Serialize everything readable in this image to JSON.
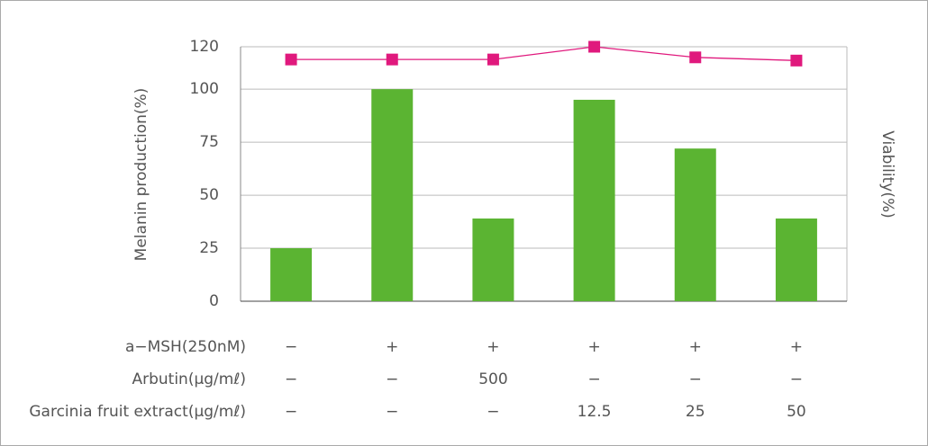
{
  "chart_data": {
    "type": "bar",
    "y_label": "Melanin production(%)",
    "y2_label": "Viability(%)",
    "ylim": [
      0,
      120
    ],
    "yticks": [
      0,
      25,
      50,
      75,
      100,
      120
    ],
    "grid": true,
    "categories": [
      null,
      null,
      null,
      null,
      null,
      null
    ],
    "series": [
      {
        "name": "Melanin production",
        "color": "#5bb432",
        "type": "bar",
        "values": [
          25,
          100,
          39,
          95,
          72,
          39
        ]
      },
      {
        "name": "Viability",
        "color": "#e0197d",
        "type": "line",
        "values": [
          114,
          114,
          114,
          120,
          115,
          113.5
        ]
      }
    ],
    "conditions": [
      {
        "label": "a−MSH(250nM)",
        "values": [
          "−",
          "+",
          "+",
          "+",
          "+",
          "+"
        ]
      },
      {
        "label": "Arbutin(μg/mℓ)",
        "values": [
          "−",
          "−",
          "500",
          "−",
          "−",
          "−"
        ]
      },
      {
        "label": "Garcinia fruit extract(μg/mℓ)",
        "values": [
          "−",
          "−",
          "−",
          "12.5",
          "25",
          "50"
        ]
      }
    ]
  }
}
